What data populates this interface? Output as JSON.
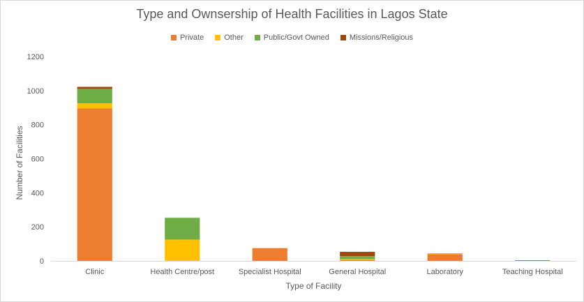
{
  "chart_data": {
    "type": "bar",
    "stacked": true,
    "title": "Type and Ownsership of Health Facilities in Lagos State",
    "xlabel": "Type of Facility",
    "ylabel": "Number of Facilities",
    "ylim": [
      0,
      1200
    ],
    "yticks": [
      0,
      200,
      400,
      600,
      800,
      1000,
      1200
    ],
    "grid": false,
    "legend_position": "top",
    "categories": [
      "Clinic",
      "Health Centre/post",
      "Specialist Hospital",
      "General Hospital",
      "Laboratory",
      "Teaching Hospital"
    ],
    "series": [
      {
        "name": "Private",
        "color": "#ED7D31",
        "values": [
          895,
          0,
          75,
          5,
          40,
          0
        ]
      },
      {
        "name": "Other",
        "color": "#FFC000",
        "values": [
          30,
          125,
          0,
          5,
          5,
          0
        ]
      },
      {
        "name": "Public/Govt Owned",
        "color": "#70AD47",
        "values": [
          85,
          128,
          0,
          18,
          0,
          4
        ]
      },
      {
        "name": "Missions/Religious",
        "color": "#9E480E",
        "values": [
          12,
          0,
          0,
          25,
          0,
          0
        ]
      }
    ]
  }
}
